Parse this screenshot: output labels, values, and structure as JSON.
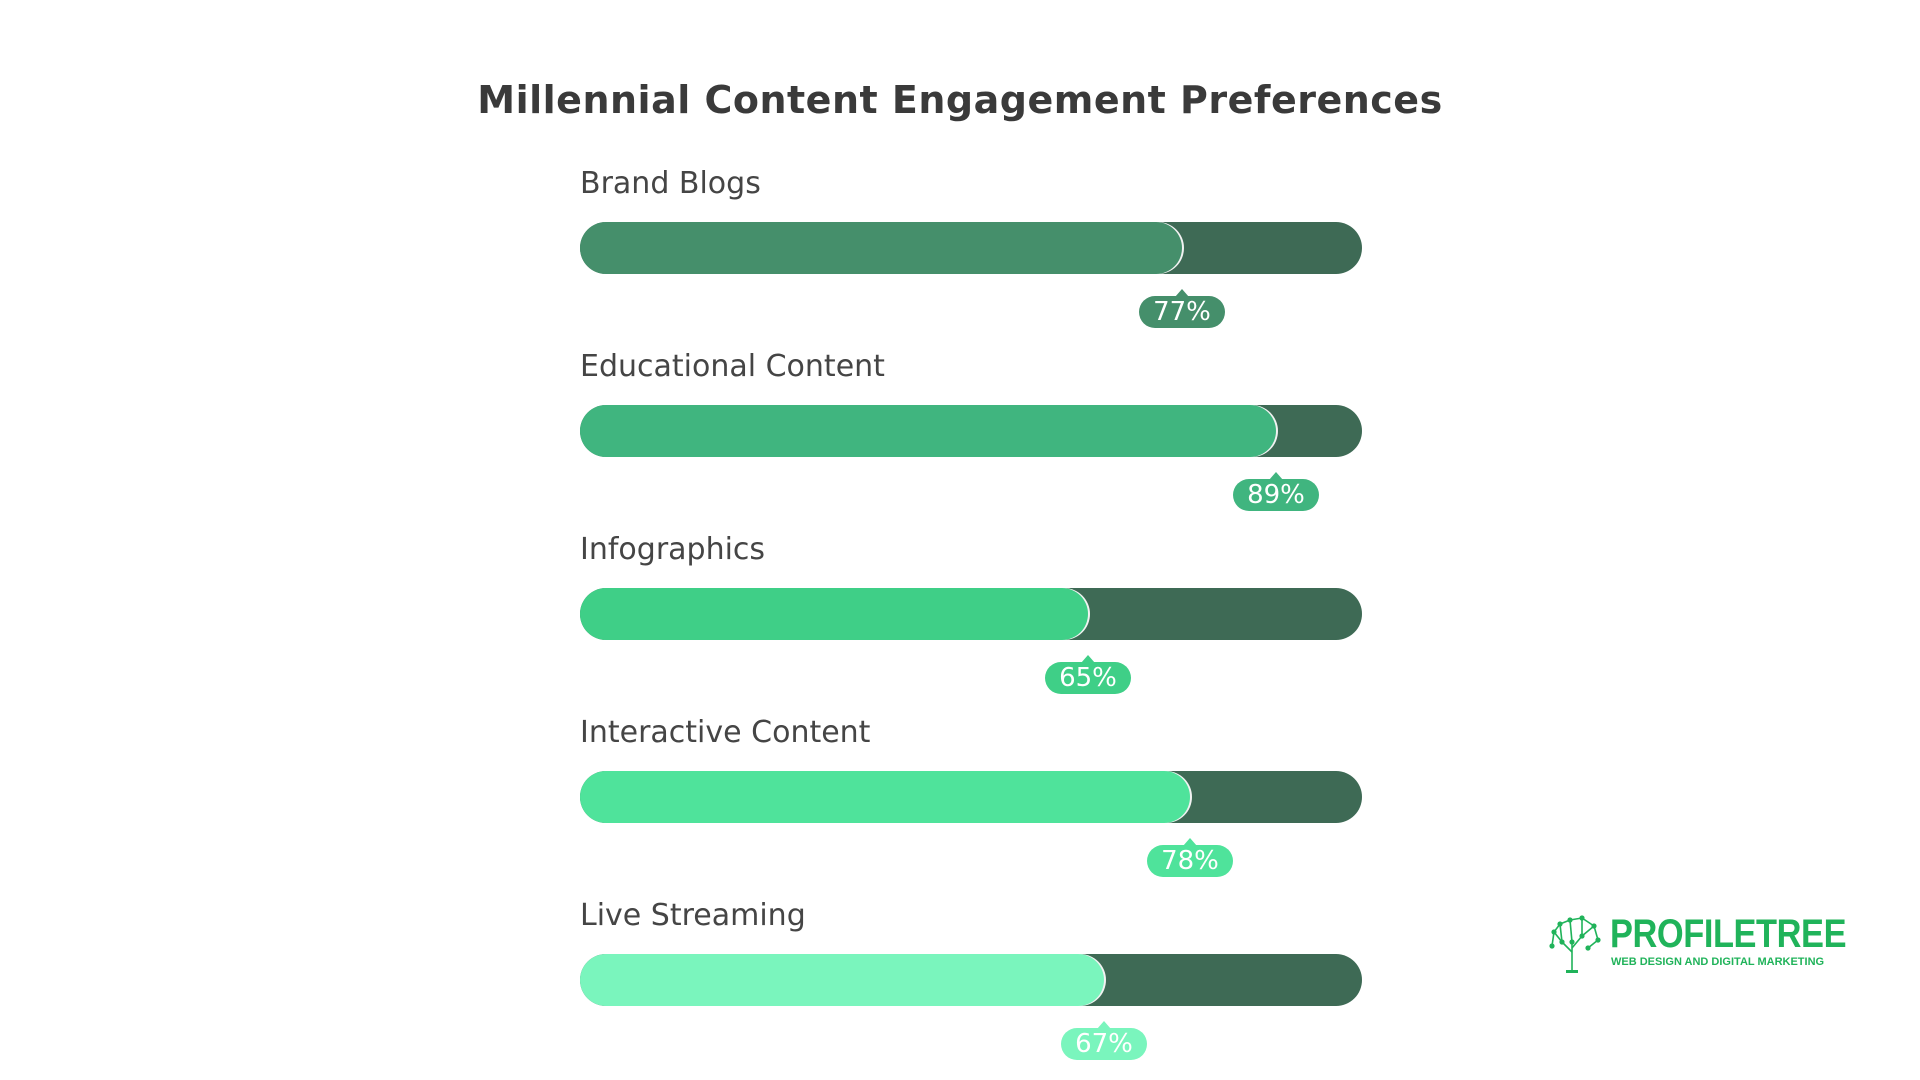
{
  "chart_data": {
    "type": "bar",
    "orientation": "horizontal",
    "title": "Millennial Content Engagement Preferences",
    "categories": [
      "Brand Blogs",
      "Educational Content",
      "Infographics",
      "Interactive Content",
      "Live Streaming"
    ],
    "values": [
      77,
      89,
      65,
      78,
      67
    ],
    "value_labels": [
      "77%",
      "89%",
      "65%",
      "78%",
      "67%"
    ],
    "xlim": [
      0,
      100
    ],
    "unit": "%",
    "grid": false,
    "legend": "none",
    "colors": {
      "fills": [
        "#458f6b",
        "#40b57f",
        "#3fcf87",
        "#4fe39b",
        "#7af5bd"
      ],
      "track": "#3e6a55"
    }
  },
  "logo": {
    "name": "PROFILETREE",
    "tagline": "WEB DESIGN AND DIGITAL MARKETING",
    "color": "#20b35a"
  }
}
